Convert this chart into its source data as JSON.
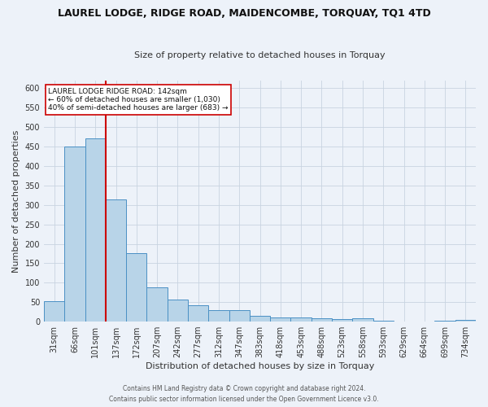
{
  "title": "LAUREL LODGE, RIDGE ROAD, MAIDENCOMBE, TORQUAY, TQ1 4TD",
  "subtitle": "Size of property relative to detached houses in Torquay",
  "xlabel": "Distribution of detached houses by size in Torquay",
  "ylabel": "Number of detached properties",
  "categories": [
    "31sqm",
    "66sqm",
    "101sqm",
    "137sqm",
    "172sqm",
    "207sqm",
    "242sqm",
    "277sqm",
    "312sqm",
    "347sqm",
    "383sqm",
    "418sqm",
    "453sqm",
    "488sqm",
    "523sqm",
    "558sqm",
    "593sqm",
    "629sqm",
    "664sqm",
    "699sqm",
    "734sqm"
  ],
  "values": [
    53,
    450,
    472,
    313,
    175,
    88,
    56,
    41,
    30,
    30,
    15,
    10,
    10,
    9,
    6,
    8,
    2,
    0,
    0,
    2,
    5
  ],
  "bar_color": "#b8d4e8",
  "bar_edge_color": "#4a90c4",
  "vline_x": 2.5,
  "vline_color": "#cc0000",
  "annotation_text": "LAUREL LODGE RIDGE ROAD: 142sqm\n← 60% of detached houses are smaller (1,030)\n40% of semi-detached houses are larger (683) →",
  "annotation_box_color": "#ffffff",
  "annotation_box_edge": "#cc0000",
  "ylim": [
    0,
    620
  ],
  "yticks": [
    0,
    50,
    100,
    150,
    200,
    250,
    300,
    350,
    400,
    450,
    500,
    550,
    600
  ],
  "footer1": "Contains HM Land Registry data © Crown copyright and database right 2024.",
  "footer2": "Contains public sector information licensed under the Open Government Licence v3.0.",
  "bg_color": "#edf2f9",
  "plot_bg_color": "#edf2f9",
  "title_fontsize": 9,
  "subtitle_fontsize": 8,
  "axis_label_fontsize": 8,
  "tick_fontsize": 7,
  "annotation_fontsize": 6.5,
  "footer_fontsize": 5.5
}
